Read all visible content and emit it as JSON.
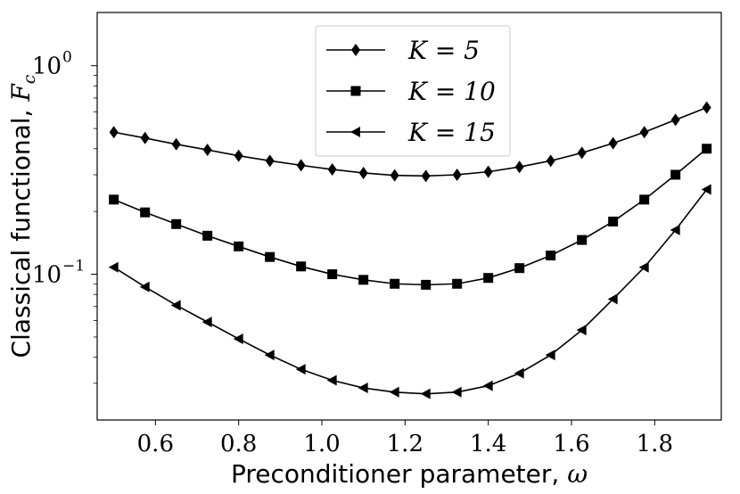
{
  "chart_data": {
    "type": "line",
    "title": "",
    "xlabel": "Preconditioner parameter, ω",
    "ylabel": "Classical functional, F_c",
    "xlim": [
      0.46,
      1.96
    ],
    "ylim": [
      0.02,
      1.8
    ],
    "yscale": "log",
    "grid": false,
    "legend_position": "top-center",
    "x": [
      0.5,
      0.575,
      0.65,
      0.725,
      0.8,
      0.875,
      0.95,
      1.025,
      1.1,
      1.175,
      1.25,
      1.325,
      1.4,
      1.475,
      1.55,
      1.625,
      1.7,
      1.775,
      1.85,
      1.925
    ],
    "xticks": [
      0.6,
      0.8,
      1.0,
      1.2,
      1.4,
      1.6,
      1.8
    ],
    "xtick_labels": [
      "0.6",
      "0.8",
      "1.0",
      "1.2",
      "1.4",
      "1.6",
      "1.8"
    ],
    "yticks": [
      {
        "value": 1.0,
        "base": "10",
        "exp": "0"
      },
      {
        "value": 0.1,
        "base": "10",
        "exp": "−1"
      }
    ],
    "series": [
      {
        "name": "K = 5",
        "marker": "diamond",
        "values": [
          0.48,
          0.45,
          0.42,
          0.395,
          0.37,
          0.35,
          0.333,
          0.318,
          0.306,
          0.298,
          0.296,
          0.3,
          0.31,
          0.327,
          0.35,
          0.382,
          0.425,
          0.48,
          0.55,
          0.63
        ]
      },
      {
        "name": "K = 10",
        "marker": "square",
        "values": [
          0.228,
          0.198,
          0.174,
          0.153,
          0.136,
          0.121,
          0.109,
          0.1,
          0.094,
          0.09,
          0.089,
          0.09,
          0.096,
          0.107,
          0.123,
          0.146,
          0.179,
          0.228,
          0.3,
          0.4
        ]
      },
      {
        "name": "K = 15",
        "marker": "triangle-left",
        "values": [
          0.108,
          0.087,
          0.071,
          0.059,
          0.049,
          0.041,
          0.035,
          0.031,
          0.0285,
          0.0272,
          0.0267,
          0.0272,
          0.0292,
          0.0335,
          0.041,
          0.054,
          0.076,
          0.108,
          0.163,
          0.255
        ]
      }
    ]
  }
}
